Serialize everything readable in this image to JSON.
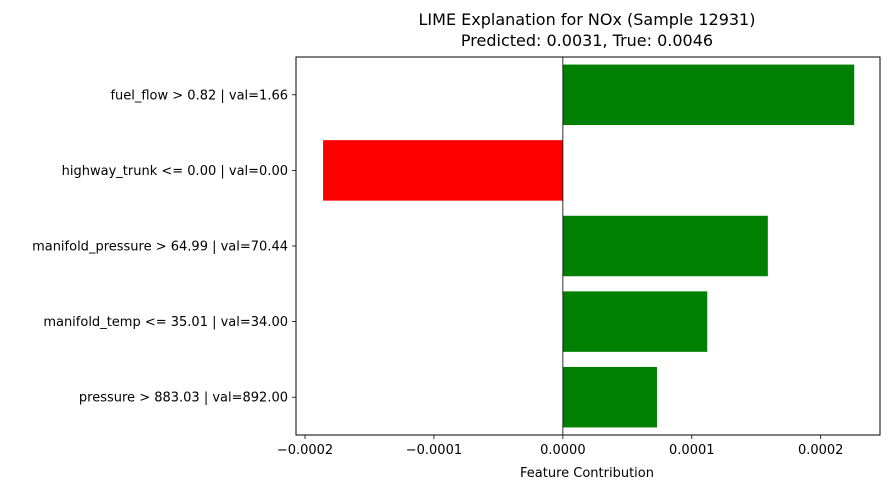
{
  "chart_data": {
    "type": "bar",
    "orientation": "horizontal",
    "title": "LIME Explanation for NOx (Sample 12931)",
    "subtitle": "Predicted: 0.0031, True: 0.0046",
    "xlabel": "Feature Contribution",
    "ylabel": "",
    "xlim": [
      -0.000207,
      0.000246
    ],
    "xticks": [
      -0.0002,
      -0.0001,
      0.0,
      0.0001,
      0.0002
    ],
    "xtick_labels": [
      "−0.0002",
      "−0.0001",
      "0.0000",
      "0.0001",
      "0.0002"
    ],
    "categories": [
      "fuel_flow > 0.82 | val=1.66",
      "highway_trunk <= 0.00 | val=0.00",
      "manifold_pressure > 64.99 | val=70.44",
      "manifold_temp <= 35.01 | val=34.00",
      "pressure > 883.03 | val=892.00"
    ],
    "values": [
      0.000226,
      -0.000186,
      0.000159,
      0.000112,
      7.3e-05
    ],
    "colors": {
      "positive": "#008000",
      "negative": "#ff0000"
    },
    "zero_line": true,
    "grid": false
  }
}
